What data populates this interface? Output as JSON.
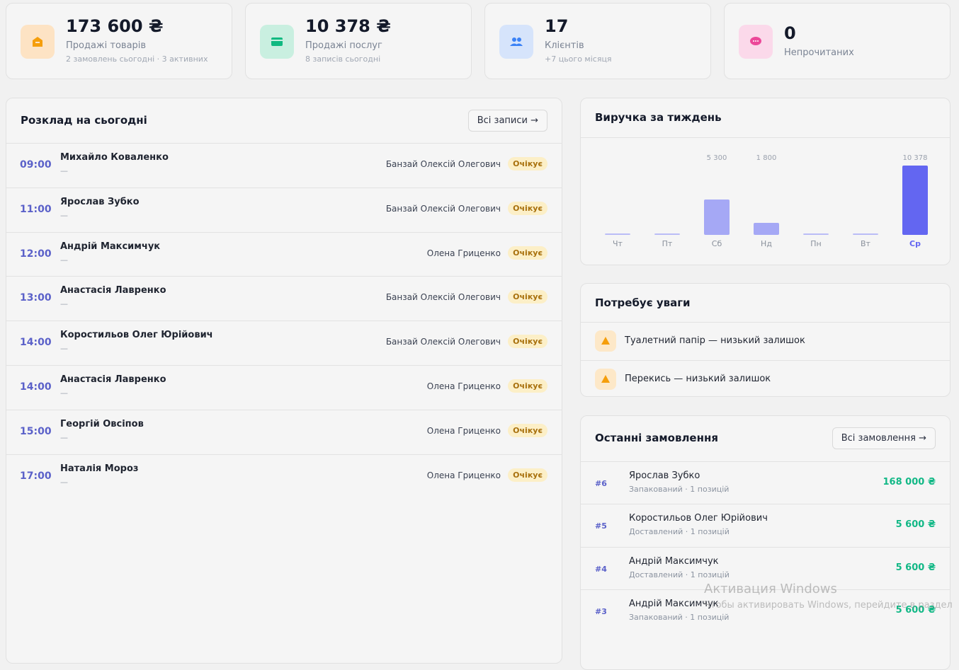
{
  "stats": [
    {
      "value": "173 600 ₴",
      "label": "Продажі товарів",
      "sub": "2 замовлень сьогодні · 3 активних"
    },
    {
      "value": "10 378 ₴",
      "label": "Продажі послуг",
      "sub": "8 записів сьогодні"
    },
    {
      "value": "17",
      "label": "Клієнтів",
      "sub": "+7 цього місяця"
    },
    {
      "value": "0",
      "label": "Непрочитаних"
    }
  ],
  "schedule": {
    "title": "Розклад на сьогодні",
    "button": "Всі записи →",
    "rows": [
      {
        "time": "09:00",
        "client": "Михайло Коваленко",
        "note": "—",
        "master": "Банзай Олексій Олегович",
        "status": "Очікує"
      },
      {
        "time": "11:00",
        "client": "Ярослав Зубко",
        "note": "—",
        "master": "Банзай Олексій Олегович",
        "status": "Очікує"
      },
      {
        "time": "12:00",
        "client": "Андрій Максимчук",
        "note": "—",
        "master": "Олена Гриценко",
        "status": "Очікує"
      },
      {
        "time": "13:00",
        "client": "Анастасія Лавренко",
        "note": "—",
        "master": "Банзай Олексій Олегович",
        "status": "Очікує"
      },
      {
        "time": "14:00",
        "client": "Коростильов Олег Юрійович",
        "note": "—",
        "master": "Банзай Олексій Олегович",
        "status": "Очікує"
      },
      {
        "time": "14:00",
        "client": "Анастасія Лавренко",
        "note": "—",
        "master": "Олена Гриценко",
        "status": "Очікує"
      },
      {
        "time": "15:00",
        "client": "Георгій Овсіпов",
        "note": "—",
        "master": "Олена Гриценко",
        "status": "Очікує"
      },
      {
        "time": "17:00",
        "client": "Наталія Мороз",
        "note": "—",
        "master": "Олена Гриценко",
        "status": "Очікує"
      }
    ]
  },
  "revenue": {
    "title": "Виручка за тиждень",
    "chart_data": {
      "type": "bar",
      "categories": [
        "Чт",
        "Пт",
        "Сб",
        "Нд",
        "Пн",
        "Вт",
        "Ср"
      ],
      "values": [
        0,
        0,
        5300,
        1800,
        0,
        0,
        10378
      ],
      "value_labels": [
        null,
        null,
        "5 300",
        "1 800",
        null,
        null,
        "10 378"
      ],
      "colors": [
        "#a5a8f5",
        "#a5a8f5",
        "#a5a8f5",
        "#a5a8f5",
        "#a5a8f5",
        "#a5a8f5",
        "#6366f1"
      ],
      "highlight_color": "#6366f1"
    }
  },
  "attention": {
    "title": "Потребує уваги",
    "items": [
      "Туалетний папір — низький залишок",
      "Перекись — низький залишок"
    ]
  },
  "orders": {
    "title": "Останні замовлення",
    "button": "Всі замовлення →",
    "rows": [
      {
        "id": "#6",
        "client": "Ярослав Зубко",
        "meta": "Запакований · 1 позицій",
        "amount": "168 000 ₴"
      },
      {
        "id": "#5",
        "client": "Коростильов Олег Юрійович",
        "meta": "Доставлений · 1 позицій",
        "amount": "5 600 ₴"
      },
      {
        "id": "#4",
        "client": "Андрій Максимчук",
        "meta": "Доставлений · 1 позицій",
        "amount": "5 600 ₴"
      },
      {
        "id": "#3",
        "client": "Андрій Максимчук",
        "meta": "Запакований · 1 позицій",
        "amount": "5 600 ₴"
      }
    ]
  },
  "watermark": {
    "title": "Активация Windows",
    "text": "Чтобы активировать Windows, перейдите в раздел"
  }
}
